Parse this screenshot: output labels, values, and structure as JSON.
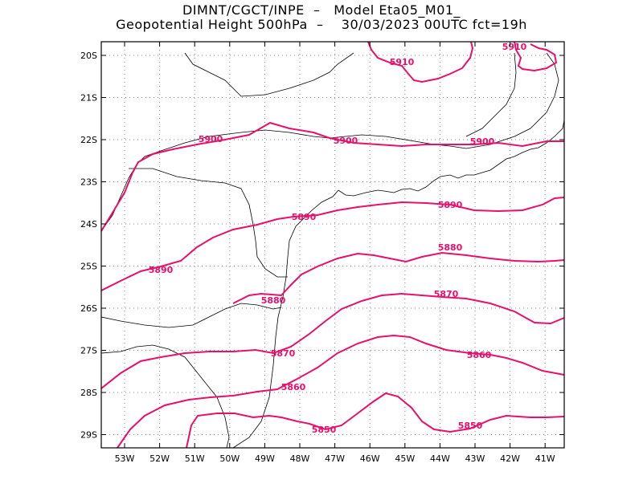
{
  "header": {
    "line1": "DIMNT/CGCT/INPE  –   Model Eta05_M01_",
    "line2": "Geopotential Height 500hPa  –    30/03/2023 00UTC fct=19h"
  },
  "colors": {
    "contour": "#e8106c",
    "coast": "#000000",
    "grid": "#888888"
  },
  "axes": {
    "lat_labels": [
      "20S",
      "21S",
      "22S",
      "23S",
      "24S",
      "25S",
      "26S",
      "27S",
      "28S",
      "29S"
    ],
    "lon_labels": [
      "53W",
      "52W",
      "51W",
      "50W",
      "49W",
      "48W",
      "47W",
      "46W",
      "45W",
      "44W",
      "43W",
      "42W",
      "41W"
    ]
  },
  "contours": [
    {
      "value": "5910",
      "labels": [
        "5910",
        "5910"
      ]
    },
    {
      "value": "5900",
      "labels": [
        "5900",
        "5900",
        "5900"
      ]
    },
    {
      "value": "5890",
      "labels": [
        "5890",
        "5890",
        "5890"
      ]
    },
    {
      "value": "5880",
      "labels": [
        "5880",
        "5880"
      ]
    },
    {
      "value": "5870",
      "labels": [
        "5870",
        "5870"
      ]
    },
    {
      "value": "5860",
      "labels": [
        "5860",
        "5860"
      ]
    },
    {
      "value": "5850",
      "labels": [
        "5850",
        "5850"
      ]
    }
  ]
}
